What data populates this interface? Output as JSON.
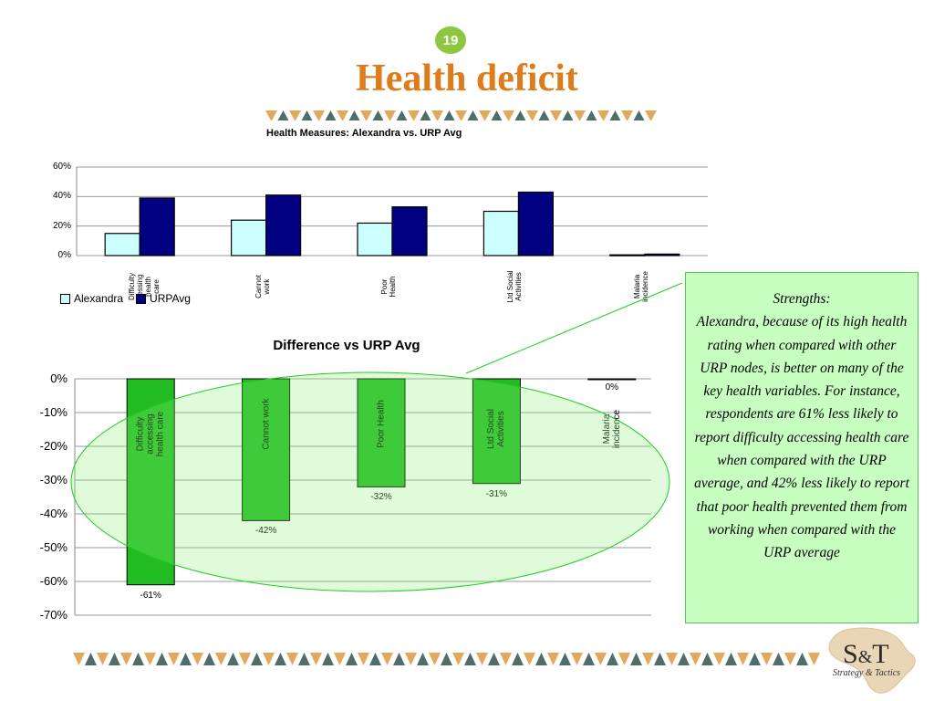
{
  "slide": {
    "number": "19",
    "title": "Health deficit",
    "colors": {
      "title": "#e07b1a",
      "badge": "#8dc63f",
      "band_light": "#e3a95a",
      "band_dark": "#4f6e6a"
    }
  },
  "callout": {
    "heading": "Strengths:",
    "body": "Alexandra, because of  its high health rating when compared with other URP nodes, is better on many of   the key health variables. For instance, respondents are 61% less likely to report difficulty accessing health care when compared with the URP average, and 42% less likely to report that poor health prevented them from working when compared with the URP average"
  },
  "logo": {
    "main": "S",
    "amp": "&",
    "letter": "T",
    "sub": "Strategy & Tactics"
  },
  "chart_data": [
    {
      "type": "bar",
      "title": "Health Measures: Alexandra vs. URP Avg",
      "categories": [
        "Difficulty accessing health care",
        "Cannot work",
        "Poor Health",
        "Ltd Social Activities",
        "Malaria incidence"
      ],
      "category_display": [
        "Difficulty\ncessing\nhealth\ncare",
        "Cannot\nwork",
        "Poor\nHealth",
        "Ltd Social\nActivities",
        "Malaria\nincidence"
      ],
      "series": [
        {
          "name": "Alexandra",
          "values": [
            15,
            24,
            22,
            30,
            0.5
          ],
          "color": "#ccffff"
        },
        {
          "name": "URPAvg",
          "values": [
            39,
            41,
            33,
            43,
            1
          ],
          "color": "#000080"
        }
      ],
      "ylim": [
        0,
        60
      ],
      "yticks": [
        "0%",
        "20%",
        "40%",
        "60%"
      ],
      "ytick_values": [
        0,
        20,
        40,
        60
      ],
      "grid": true,
      "legend": "bottom-left"
    },
    {
      "type": "bar",
      "title": "Difference vs URP Avg",
      "categories": [
        "Difficulty accessing health care",
        "Cannot work",
        "Poor Health",
        "Ltd Social Activities",
        "Malaria incidence"
      ],
      "category_display": [
        "Difficulty\naccessing\nhealth care",
        "Cannot work",
        "Poor Health",
        "Ltd Social\nActivities",
        "Malaria\nincidence"
      ],
      "values": [
        -61,
        -42,
        -32,
        -31,
        0
      ],
      "data_labels": [
        "-61%",
        "-42%",
        "-32%",
        "-31%",
        "0%"
      ],
      "color": "#22bb22",
      "ylim": [
        -70,
        0
      ],
      "yticks": [
        "0%",
        "-10%",
        "-20%",
        "-30%",
        "-40%",
        "-50%",
        "-60%",
        "-70%"
      ],
      "ytick_values": [
        0,
        -10,
        -20,
        -30,
        -40,
        -50,
        -60,
        -70
      ],
      "grid": true,
      "legend": "none"
    }
  ]
}
